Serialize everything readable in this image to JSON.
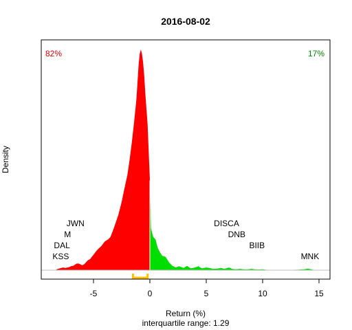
{
  "chart_data": {
    "type": "area",
    "title": "2016-08-02",
    "xlabel": "Return (%)",
    "ylabel": "Density",
    "subtitle": "interquartile range: 1.29",
    "xlim": [
      -9.5,
      15.8
    ],
    "ylim": [
      0,
      1.0
    ],
    "x_ticks": [
      -5,
      0,
      5,
      10,
      15
    ],
    "x_tick_labels": [
      "-5",
      "0",
      "5",
      "10",
      "15"
    ],
    "split_at": 0,
    "pct_negative": "82%",
    "pct_positive": "17%",
    "colors": {
      "negative": "#ff0000",
      "positive": "#00dd00",
      "iqr": "#ffc000",
      "baseline": "#bebebe",
      "pct_negative_text": "#dd0000",
      "pct_positive_text": "#008800"
    },
    "iqr": [
      -1.5,
      -0.2
    ],
    "density": {
      "x": [
        -8.3,
        -8.0,
        -7.7,
        -7.5,
        -7.2,
        -7.0,
        -6.8,
        -6.5,
        -6.3,
        -6.0,
        -5.8,
        -5.5,
        -5.3,
        -5.0,
        -4.7,
        -4.5,
        -4.3,
        -4.0,
        -3.7,
        -3.5,
        -3.2,
        -3.0,
        -2.8,
        -2.5,
        -2.3,
        -2.0,
        -1.8,
        -1.6,
        -1.4,
        -1.2,
        -1.1,
        -1.0,
        -0.9,
        -0.8,
        -0.7,
        -0.6,
        -0.5,
        -0.4,
        -0.2,
        -0.1,
        0.0,
        0.1,
        0.3,
        0.5,
        0.7,
        0.9,
        1.1,
        1.4,
        1.7,
        2.0,
        2.3,
        2.6,
        3.0,
        3.3,
        3.6,
        4.0,
        4.3,
        4.6,
        5.0,
        5.3,
        5.6,
        6.0,
        6.3,
        6.6,
        7.0,
        7.3,
        7.6,
        8.0,
        8.3,
        8.6,
        9.0,
        9.3,
        9.6,
        10.0,
        10.3,
        11.0,
        12.0,
        13.0,
        13.7,
        14.0,
        14.3,
        14.6,
        15.0
      ],
      "y": [
        0.003,
        0.008,
        0.012,
        0.01,
        0.013,
        0.018,
        0.02,
        0.03,
        0.03,
        0.022,
        0.028,
        0.045,
        0.05,
        0.07,
        0.09,
        0.1,
        0.11,
        0.13,
        0.14,
        0.15,
        0.19,
        0.22,
        0.25,
        0.31,
        0.36,
        0.43,
        0.5,
        0.58,
        0.67,
        0.77,
        0.85,
        0.93,
        0.98,
        1.0,
        0.98,
        0.94,
        0.88,
        0.8,
        0.66,
        0.53,
        0.41,
        0.19,
        0.15,
        0.14,
        0.1,
        0.08,
        0.065,
        0.06,
        0.035,
        0.02,
        0.012,
        0.018,
        0.01,
        0.02,
        0.008,
        0.012,
        0.018,
        0.008,
        0.012,
        0.01,
        0.006,
        0.007,
        0.01,
        0.006,
        0.012,
        0.006,
        0.004,
        0.006,
        0.004,
        0.003,
        0.006,
        0.004,
        0.003,
        0.004,
        0.002,
        0.001,
        0.001,
        0.002,
        0.004,
        0.007,
        0.004,
        0.001,
        0.0
      ]
    },
    "annotations": [
      {
        "label": "JWN",
        "x": -6.6,
        "y": 0.2
      },
      {
        "label": "M",
        "x": -7.3,
        "y": 0.15
      },
      {
        "label": "DAL",
        "x": -7.8,
        "y": 0.1
      },
      {
        "label": "KSS",
        "x": -7.9,
        "y": 0.05
      },
      {
        "label": "DISCA",
        "x": 6.8,
        "y": 0.2
      },
      {
        "label": "DNB",
        "x": 7.7,
        "y": 0.15
      },
      {
        "label": "BIIB",
        "x": 9.5,
        "y": 0.1
      },
      {
        "label": "MNK",
        "x": 14.2,
        "y": 0.05
      }
    ]
  }
}
